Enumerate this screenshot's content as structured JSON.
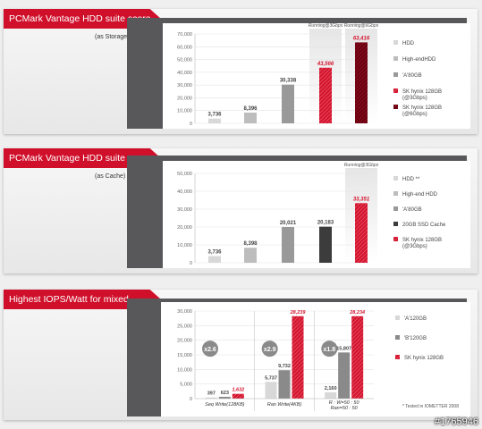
{
  "panels": [
    {
      "title": "PCMark Vantage HDD suite score",
      "subtitle": "(as Storage)",
      "chart_data": {
        "type": "bar",
        "ylim": [
          0,
          70000
        ],
        "yticks": [
          0,
          10000,
          20000,
          30000,
          40000,
          50000,
          60000,
          70000
        ],
        "ytick_labels": [
          "0",
          "10,000",
          "20,000",
          "30,000",
          "40,000",
          "50,000",
          "60,000",
          "70,000"
        ],
        "bars": [
          {
            "name": "HDD",
            "value": 3736,
            "label": "3,736",
            "color": "#d8d8d8",
            "style": "plain"
          },
          {
            "name": "High-endHDD",
            "value": 8396,
            "label": "8,396",
            "color": "#bdbdbd",
            "style": "plain"
          },
          {
            "name": "'A'80GB",
            "value": 30338,
            "label": "30,338",
            "color": "#999999",
            "style": "plain"
          },
          {
            "name": "SK hynix 128GB (@3Gbps)",
            "value": 43566,
            "label": "43,566",
            "color": "#d4152f",
            "style": "red"
          },
          {
            "name": "SK hynix 128GB (@6Gbps)",
            "value": 63416,
            "label": "63,416",
            "color": "#6a0010",
            "style": "darkred"
          }
        ],
        "annotations": [
          "Running@3Gbps",
          "Running@6Gbps"
        ],
        "legend": [
          {
            "label": "HDD",
            "color": "#d8d8d8"
          },
          {
            "label": "High-endHDD",
            "color": "#bdbdbd"
          },
          {
            "label": "'A'80GB",
            "color": "#999999"
          },
          {
            "label": "SK hynix 128GB (@3Gbps)",
            "color": "#d4152f"
          },
          {
            "label": "SK hynix 128GB (@6Gbps)",
            "color": "#6a0010"
          }
        ]
      }
    },
    {
      "title": "PCMark Vantage HDD suite score",
      "subtitle": "(as Cache)",
      "chart_data": {
        "type": "bar",
        "ylim": [
          0,
          50000
        ],
        "yticks": [
          0,
          10000,
          20000,
          30000,
          40000,
          50000
        ],
        "ytick_labels": [
          "0",
          "10,000",
          "20,000",
          "30,000",
          "40,000",
          "50,000"
        ],
        "bars": [
          {
            "name": "HDD **",
            "value": 3736,
            "label": "3,736",
            "color": "#d8d8d8",
            "style": "plain"
          },
          {
            "name": "High-end HDD",
            "value": 8398,
            "label": "8,398",
            "color": "#bdbdbd",
            "style": "plain"
          },
          {
            "name": "'A'80GB",
            "value": 20021,
            "label": "20,021",
            "color": "#999999",
            "style": "plain"
          },
          {
            "name": "20GB SSD Cache",
            "value": 20183,
            "label": "20,183",
            "color": "#3c3c3c",
            "style": "plain"
          },
          {
            "name": "SK hynix 128GB (@3Gbps)",
            "value": 33351,
            "label": "33,351",
            "color": "#d4152f",
            "style": "red"
          }
        ],
        "annotations": [
          "Running@3Gbps"
        ],
        "legend": [
          {
            "label": "HDD **",
            "color": "#d8d8d8"
          },
          {
            "label": "High-end HDD",
            "color": "#bdbdbd"
          },
          {
            "label": "'A'80GB",
            "color": "#999999"
          },
          {
            "label": "20GB SSD Cache",
            "color": "#3c3c3c"
          },
          {
            "label": "SK hynix 128GB (@3Gbps)",
            "color": "#d4152f"
          }
        ]
      }
    },
    {
      "title": "Highest IOPS/Watt for mixed workloads",
      "chart_data": {
        "type": "bar",
        "ylim": [
          0,
          30000
        ],
        "yticks": [
          0,
          5000,
          10000,
          15000,
          20000,
          25000,
          30000
        ],
        "ytick_labels": [
          "0",
          "5,000",
          "10,000",
          "15,000",
          "20,000",
          "25,000",
          "30,000"
        ],
        "categories": [
          "Seq Write(128KB)",
          "Ran Write(4KB)",
          "R : W=50 : 50 Ran=50 : 50"
        ],
        "series": [
          {
            "name": "'A'120GB",
            "color": "#d8d8d8",
            "values": [
              397,
              5737,
              2160
            ],
            "labels": [
              "397",
              "5,737",
              "2,160"
            ]
          },
          {
            "name": "'B'120GB",
            "color": "#8a8a8a",
            "values": [
              623,
              9732,
              15807
            ],
            "labels": [
              "623",
              "9,732",
              "15,807"
            ]
          },
          {
            "name": "SK hynix 128GB",
            "color": "#d4152f",
            "values": [
              1632,
              28239,
              28234
            ],
            "labels": [
              "1,632",
              "28,239",
              "28,234"
            ]
          }
        ],
        "multipliers": [
          "x2.6",
          "x2.9",
          "x1.8"
        ],
        "footnote": "* Tested in IOMETTER 2008"
      }
    }
  ],
  "watermark": "#1765946"
}
